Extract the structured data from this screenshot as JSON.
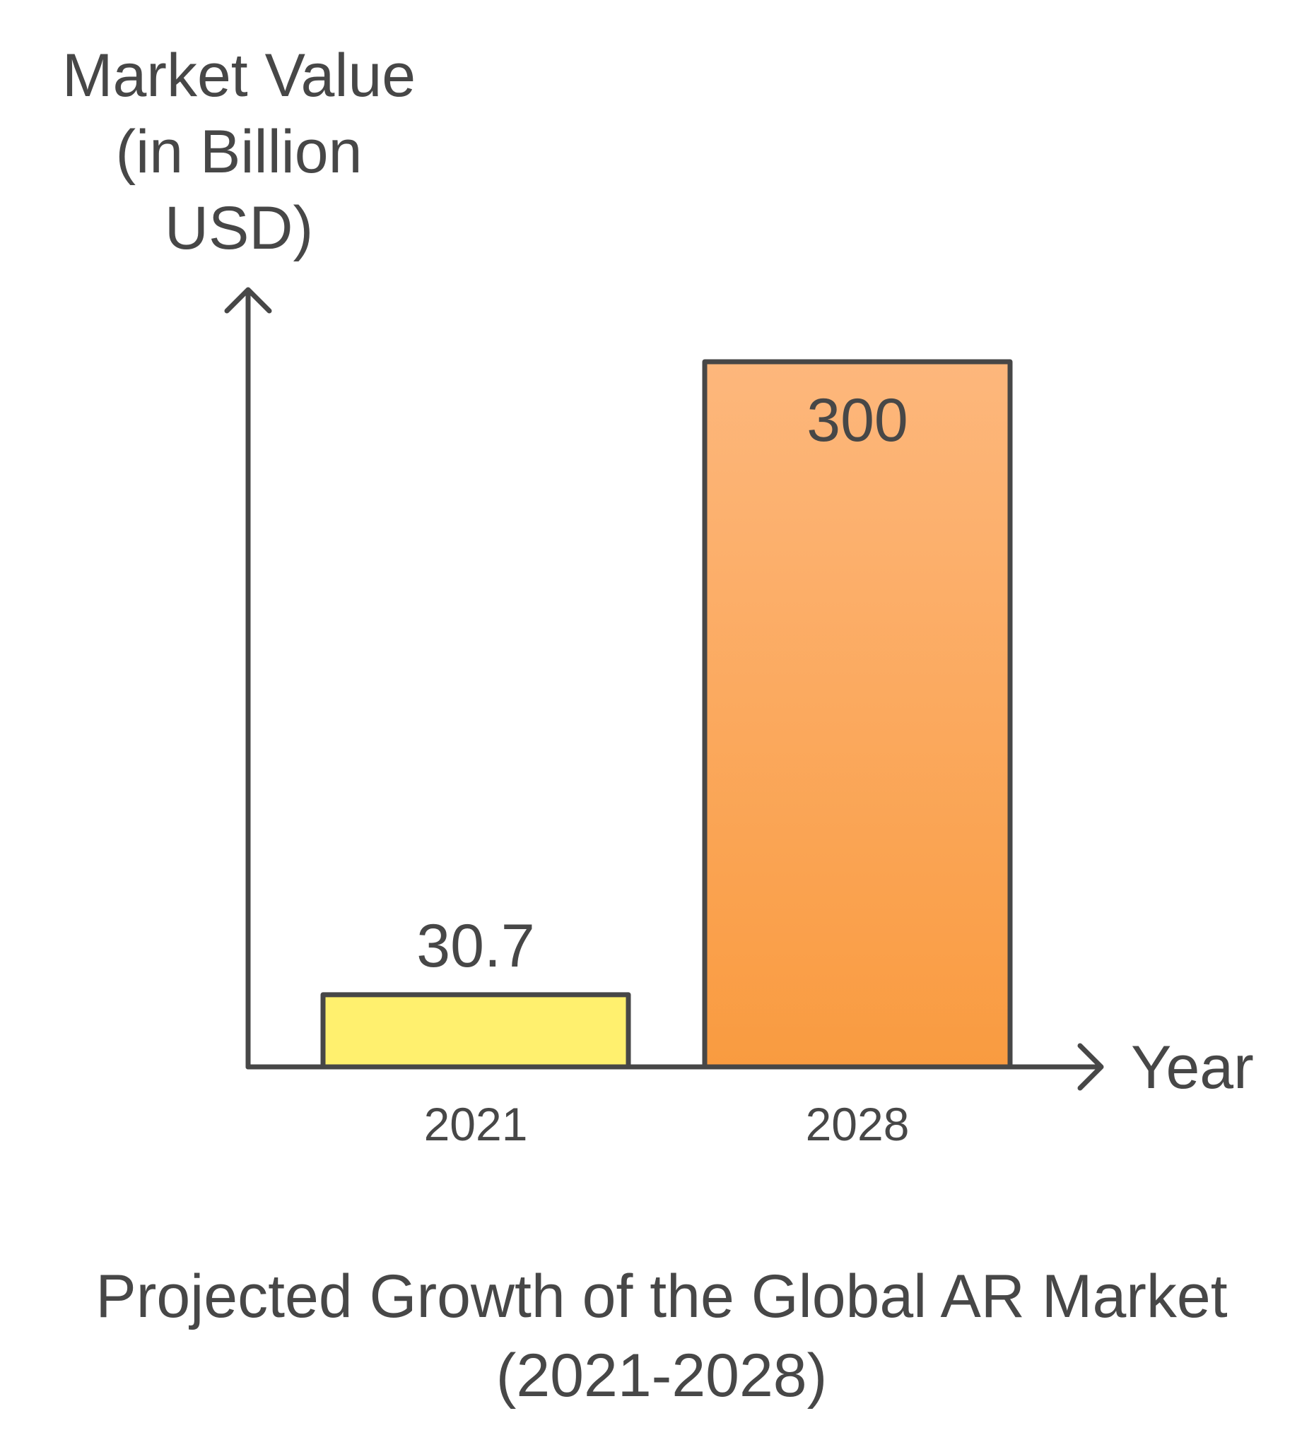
{
  "chart_data": {
    "type": "bar",
    "title_lines": [
      "Projected Growth of the Global AR Market",
      "(2021-2028)"
    ],
    "ylabel_lines": [
      "Market Value",
      "(in Billion",
      "USD)"
    ],
    "xlabel": "Year",
    "categories": [
      "2021",
      "2028"
    ],
    "values": [
      30.7,
      300
    ],
    "value_labels": [
      "30.7",
      "300"
    ],
    "colors": {
      "axis": "#474747",
      "text": "#474747",
      "bar_2021": "#fff06e",
      "bar_2028_top": "#fdb77c",
      "bar_2028_bottom": "#f99b40"
    },
    "ylim": [
      0,
      300
    ],
    "grid": false,
    "legend": "none"
  }
}
